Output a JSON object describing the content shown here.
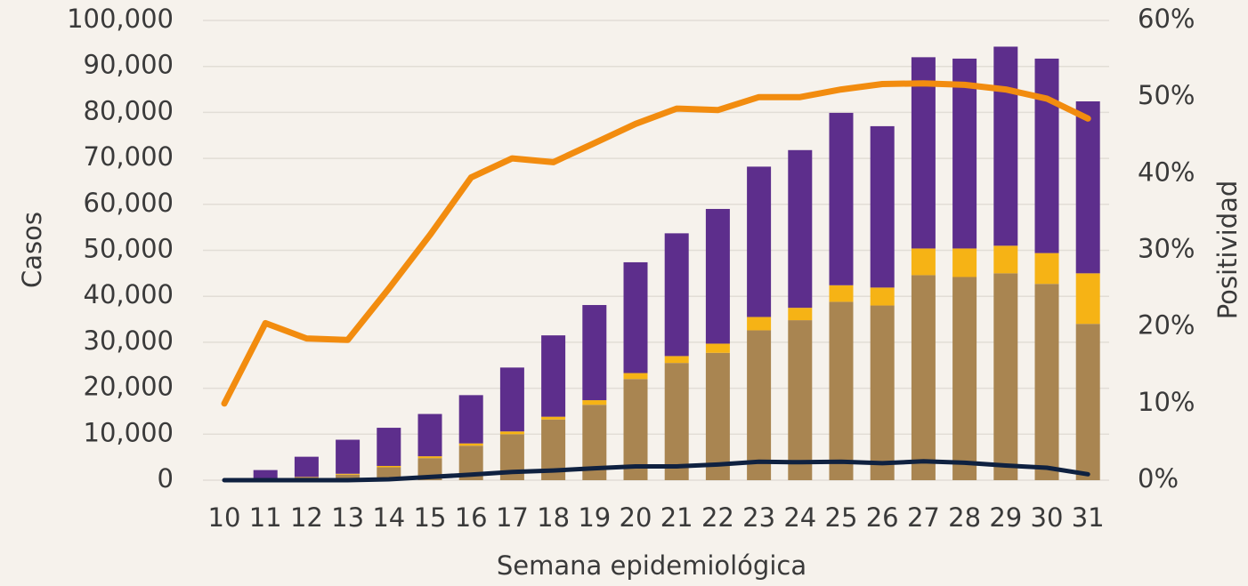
{
  "chart_data": {
    "type": "bar",
    "xlabel": "Semana epidemiológica",
    "ylabel": "Casos",
    "y2label": "Positividad",
    "ylim": [
      0,
      100000
    ],
    "y2lim": [
      0,
      60
    ],
    "y_ticks": [
      "0",
      "10,000",
      "20,000",
      "30,000",
      "40,000",
      "50,000",
      "60,000",
      "70,000",
      "80,000",
      "90,000",
      "100,000"
    ],
    "y2_ticks": [
      "0%",
      "10%",
      "20%",
      "30%",
      "40%",
      "50%",
      "60%"
    ],
    "grid": true,
    "categories": [
      "10",
      "11",
      "12",
      "13",
      "14",
      "15",
      "16",
      "17",
      "18",
      "19",
      "20",
      "21",
      "22",
      "23",
      "24",
      "25",
      "26",
      "27",
      "28",
      "29",
      "30",
      "31"
    ],
    "stacked_series": [
      {
        "color": "#a98551",
        "values": [
          0,
          300,
          600,
          1200,
          2800,
          4800,
          7500,
          10000,
          13200,
          16400,
          22000,
          25500,
          27700,
          32600,
          34800,
          38800,
          38000,
          44600,
          44200,
          45000,
          42700,
          34000
        ]
      },
      {
        "color": "#f6b315",
        "values": [
          0,
          50,
          100,
          200,
          300,
          400,
          500,
          600,
          600,
          1000,
          1300,
          1500,
          2000,
          2900,
          2700,
          3600,
          3900,
          5800,
          6200,
          6000,
          6700,
          11000
        ]
      },
      {
        "color": "#5d2e8c",
        "values": [
          0,
          1850,
          4400,
          7400,
          8300,
          9200,
          10500,
          13900,
          17700,
          20700,
          24100,
          26700,
          29300,
          32700,
          34300,
          37500,
          35100,
          41600,
          41300,
          43300,
          42300,
          37400
        ]
      }
    ],
    "lines": [
      {
        "axis": "y2",
        "color": "#f28c0f",
        "values": [
          10,
          20.5,
          18.5,
          18.3,
          25,
          32,
          39.5,
          42,
          41.5,
          44,
          46.5,
          48.5,
          48.3,
          50,
          50,
          51,
          51.7,
          51.8,
          51.6,
          51,
          49.8,
          47.2
        ]
      },
      {
        "axis": "y",
        "color": "#0f2140",
        "values": [
          0,
          0,
          0,
          0,
          200,
          700,
          1200,
          1800,
          2100,
          2600,
          3000,
          3000,
          3400,
          4000,
          3900,
          4000,
          3700,
          4100,
          3800,
          3200,
          2700,
          1300
        ]
      }
    ]
  }
}
